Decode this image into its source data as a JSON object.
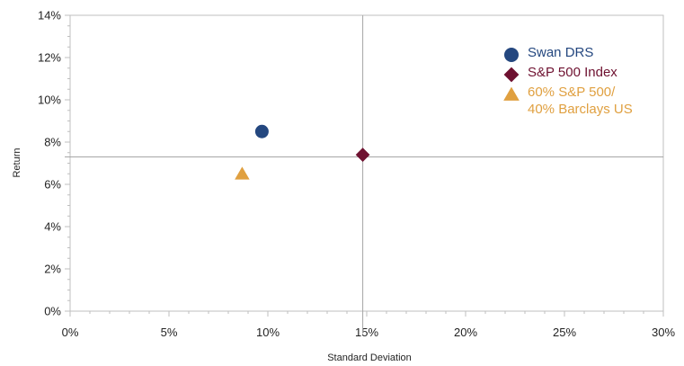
{
  "chart_data": {
    "type": "scatter",
    "xlabel": "Standard Deviation",
    "ylabel": "Return",
    "xlim": [
      0,
      30
    ],
    "ylim": [
      0,
      14
    ],
    "x_ticks": [
      "0%",
      "5%",
      "10%",
      "15%",
      "20%",
      "25%",
      "30%"
    ],
    "y_ticks": [
      "0%",
      "2%",
      "4%",
      "6%",
      "8%",
      "10%",
      "12%",
      "14%"
    ],
    "reference_lines": {
      "x": 14.8,
      "y": 7.3
    },
    "grid": false,
    "legend_position": "top-right",
    "series": [
      {
        "name": "Swan DRS",
        "x": 9.7,
        "y": 8.5,
        "marker": "circle",
        "color": "#24477f"
      },
      {
        "name": "S&P 500 Index",
        "x": 14.8,
        "y": 7.4,
        "marker": "diamond",
        "color": "#6e1130"
      },
      {
        "name": "60% S&P 500/ 40% Barclays US",
        "legend_lines": [
          "60% S&P 500/",
          "40% Barclays US"
        ],
        "x": 8.7,
        "y": 6.5,
        "marker": "triangle",
        "color": "#e0a040"
      }
    ]
  }
}
